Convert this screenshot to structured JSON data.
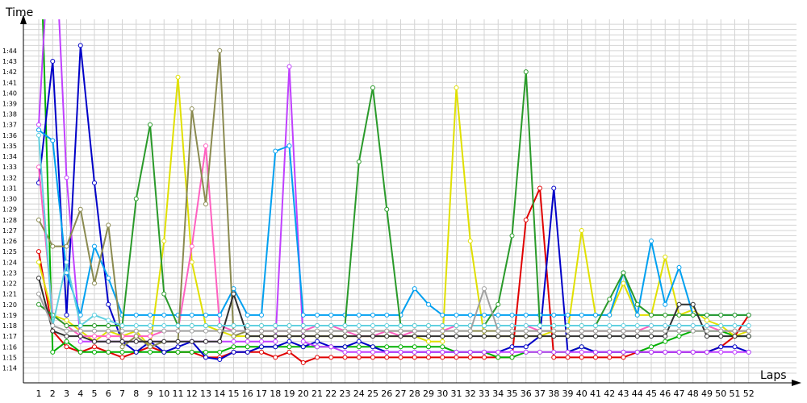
{
  "chart_data": {
    "type": "line",
    "xlabel": "Laps",
    "ylabel": "Time",
    "x": [
      1,
      2,
      3,
      4,
      5,
      6,
      7,
      8,
      9,
      10,
      11,
      12,
      13,
      14,
      15,
      16,
      17,
      18,
      19,
      20,
      21,
      22,
      23,
      24,
      25,
      26,
      27,
      28,
      29,
      30,
      31,
      32,
      33,
      34,
      35,
      36,
      37,
      38,
      39,
      40,
      41,
      42,
      43,
      44,
      45,
      46,
      47,
      48,
      49,
      50,
      51,
      52
    ],
    "x_tick_labels": [
      "1",
      "2",
      "3",
      "4",
      "5",
      "6",
      "7",
      "8",
      "9",
      "10",
      "11",
      "12",
      "13",
      "14",
      "15",
      "16",
      "17",
      "18",
      "19",
      "20",
      "21",
      "22",
      "23",
      "24",
      "25",
      "26",
      "27",
      "28",
      "29",
      "30",
      "31",
      "32",
      "33",
      "34",
      "35",
      "36",
      "37",
      "38",
      "39",
      "40",
      "41",
      "42",
      "43",
      "44",
      "45",
      "46",
      "47",
      "48",
      "49",
      "50",
      "51",
      "52"
    ],
    "y_tick_labels": [
      "1:14",
      "1:15",
      "1:16",
      "1:17",
      "1:18",
      "1:19",
      "1:20",
      "1:21",
      "1:22",
      "1:23",
      "1:24",
      "1:25",
      "1:26",
      "1:27",
      "1:28",
      "1:29",
      "1:30",
      "1:31",
      "1:32",
      "1:33",
      "1:34",
      "1:35",
      "1:36",
      "1:37",
      "1:38",
      "1:39",
      "1:40",
      "1:41",
      "1:42",
      "1:43",
      "1:44"
    ],
    "ylim_seconds": [
      73.2,
      106.5
    ],
    "grid": true,
    "legend": "none",
    "series": [
      {
        "color": "#e00000",
        "values": [
          85.0,
          77.5,
          76.0,
          75.5,
          76.0,
          75.5,
          75.0,
          75.5,
          76.0,
          75.5,
          75.5,
          75.5,
          75.0,
          75.0,
          75.5,
          75.5,
          75.5,
          75.0,
          75.5,
          74.5,
          75.0,
          75.0,
          75.0,
          75.0,
          75.0,
          75.0,
          75.0,
          75.0,
          75.0,
          75.0,
          75.0,
          75.0,
          75.0,
          75.0,
          75.0,
          88.0,
          91.0,
          75.0,
          75.0,
          75.0,
          75.0,
          75.0,
          75.0,
          75.5,
          75.5,
          75.5,
          75.5,
          75.5,
          75.5,
          76.0,
          77.0,
          79.0
        ]
      },
      {
        "color": "#00b000",
        "values": [
          120.0,
          75.5,
          76.5,
          75.5,
          75.5,
          75.5,
          75.5,
          75.5,
          75.5,
          75.5,
          75.5,
          75.5,
          75.5,
          75.5,
          76.0,
          76.0,
          76.0,
          76.0,
          76.0,
          76.0,
          76.0,
          76.0,
          76.0,
          76.0,
          76.0,
          76.0,
          76.0,
          76.0,
          76.0,
          76.0,
          75.5,
          75.5,
          75.5,
          75.0,
          75.0,
          75.5,
          75.5,
          75.5,
          75.5,
          76.0,
          75.5,
          75.5,
          75.5,
          75.5,
          76.0,
          76.5,
          77.0,
          77.5,
          77.5,
          77.5,
          77.0,
          77.0
        ]
      },
      {
        "color": "#0000c8",
        "values": [
          91.5,
          103.0,
          79.0,
          104.5,
          91.5,
          80.0,
          76.5,
          75.5,
          76.5,
          75.5,
          76.0,
          76.5,
          75.0,
          74.8,
          75.5,
          75.5,
          76.0,
          76.0,
          76.5,
          76.0,
          76.5,
          76.0,
          76.0,
          76.5,
          76.0,
          75.5,
          75.5,
          75.5,
          75.5,
          75.5,
          75.5,
          75.5,
          75.5,
          75.5,
          76.0,
          76.0,
          77.0,
          91.0,
          75.5,
          76.0,
          75.5,
          75.5,
          75.5,
          75.5,
          75.5,
          75.5,
          75.5,
          75.5,
          75.5,
          76.0,
          76.0,
          75.5
        ]
      },
      {
        "color": "#e0e000",
        "values": [
          84.0,
          79.0,
          78.5,
          77.5,
          76.5,
          77.5,
          77.0,
          77.5,
          76.0,
          86.0,
          101.5,
          84.0,
          78.0,
          77.5,
          77.0,
          77.0,
          77.0,
          77.0,
          77.0,
          77.0,
          77.0,
          77.0,
          77.0,
          77.0,
          77.0,
          77.0,
          77.0,
          77.0,
          76.5,
          76.5,
          100.5,
          86.0,
          77.0,
          77.0,
          77.0,
          77.0,
          77.0,
          77.5,
          77.5,
          87.0,
          79.0,
          79.0,
          82.0,
          79.0,
          79.0,
          84.5,
          79.0,
          79.5,
          78.5,
          78.0,
          77.0,
          77.5
        ]
      },
      {
        "color": "#ff60c0",
        "values": [
          93.0,
          79.0,
          78.0,
          77.0,
          77.0,
          77.0,
          77.0,
          77.0,
          77.0,
          77.5,
          77.5,
          85.5,
          95.0,
          78.0,
          77.5,
          77.5,
          77.5,
          77.5,
          77.5,
          77.5,
          78.0,
          78.0,
          77.5,
          77.0,
          77.0,
          77.5,
          77.0,
          77.5,
          77.5,
          77.5,
          78.0,
          78.0,
          78.0,
          78.0,
          78.0,
          78.0,
          77.5,
          77.5,
          77.5,
          77.5,
          77.5,
          77.5,
          77.5,
          77.5,
          78.0,
          78.0,
          78.0,
          78.0,
          78.0,
          77.5,
          77.5,
          77.5
        ]
      },
      {
        "color": "#c040ff",
        "values": [
          97.0,
          120.0,
          92.0,
          76.5,
          76.5,
          76.5,
          76.5,
          76.5,
          76.5,
          76.5,
          76.5,
          76.5,
          76.5,
          76.5,
          76.5,
          76.5,
          76.5,
          76.5,
          102.5,
          76.5,
          76.0,
          76.0,
          75.5,
          75.5,
          75.5,
          75.5,
          75.5,
          75.5,
          75.5,
          75.5,
          75.5,
          75.5,
          75.5,
          75.5,
          75.5,
          75.5,
          75.5,
          75.5,
          75.5,
          75.5,
          75.5,
          75.5,
          75.5,
          75.5,
          75.5,
          75.5,
          75.5,
          75.5,
          75.5,
          75.5,
          75.5,
          75.5
        ]
      },
      {
        "color": "#00a0f0",
        "values": [
          96.5,
          95.5,
          83.0,
          79.0,
          85.5,
          82.5,
          79.0,
          79.0,
          79.0,
          79.0,
          79.0,
          79.0,
          79.0,
          79.0,
          81.5,
          79.0,
          79.0,
          94.5,
          95.0,
          79.0,
          79.0,
          79.0,
          79.0,
          79.0,
          79.0,
          79.0,
          79.0,
          81.5,
          80.0,
          79.0,
          79.0,
          79.0,
          79.0,
          79.0,
          79.0,
          79.0,
          79.0,
          79.0,
          79.0,
          79.0,
          79.0,
          79.0,
          83.0,
          79.0,
          86.0,
          80.0,
          83.5,
          79.0,
          79.0,
          79.0,
          79.0,
          79.0
        ]
      },
      {
        "color": "#2a9a2a",
        "values": [
          80.0,
          79.0,
          78.0,
          78.0,
          78.0,
          78.0,
          78.0,
          90.0,
          97.0,
          81.0,
          78.0,
          78.0,
          78.0,
          78.0,
          78.0,
          78.0,
          78.0,
          78.0,
          78.0,
          78.0,
          78.0,
          78.0,
          78.0,
          93.5,
          100.5,
          89.0,
          78.0,
          78.0,
          78.0,
          78.0,
          78.0,
          78.0,
          78.0,
          80.0,
          86.5,
          102.0,
          78.0,
          78.0,
          78.0,
          78.0,
          78.0,
          80.5,
          83.0,
          80.0,
          79.0,
          79.0,
          79.0,
          79.0,
          79.0,
          79.0,
          79.0,
          79.0
        ]
      },
      {
        "color": "#8a8a50",
        "values": [
          88.0,
          85.5,
          85.5,
          89.0,
          82.0,
          87.5,
          76.0,
          77.0,
          76.0,
          76.5,
          76.5,
          98.5,
          89.5,
          104.0,
          77.0,
          77.5,
          77.5,
          77.5,
          77.5,
          77.5,
          77.5,
          77.5,
          77.5,
          77.5,
          77.5,
          77.5,
          77.5,
          77.5,
          77.5,
          77.5,
          77.5,
          77.5,
          77.5,
          77.5,
          77.5,
          77.5,
          77.5,
          77.5,
          77.5,
          77.5,
          77.5,
          77.5,
          77.5,
          77.5,
          77.5,
          77.5,
          77.5,
          77.5,
          77.5,
          77.5,
          77.5,
          77.5
        ]
      },
      {
        "color": "#303030",
        "values": [
          82.5,
          77.5,
          77.0,
          77.0,
          76.5,
          76.5,
          76.5,
          76.5,
          76.5,
          76.5,
          76.5,
          76.5,
          76.5,
          76.5,
          81.0,
          77.0,
          77.0,
          77.0,
          77.0,
          77.0,
          77.0,
          77.0,
          77.0,
          77.0,
          77.0,
          77.0,
          77.0,
          77.0,
          77.0,
          77.0,
          77.0,
          77.0,
          77.0,
          77.0,
          77.0,
          77.0,
          77.0,
          77.0,
          77.0,
          77.0,
          77.0,
          77.0,
          77.0,
          77.0,
          77.0,
          77.0,
          80.0,
          80.0,
          77.0,
          77.0,
          77.0,
          77.0
        ]
      },
      {
        "color": "#60d0e0",
        "values": [
          96.0,
          78.0,
          84.0,
          78.0,
          79.0,
          78.5,
          78.0,
          78.0,
          78.0,
          78.0,
          78.0,
          78.0,
          78.0,
          78.0,
          78.0,
          78.0,
          78.0,
          78.0,
          78.0,
          78.0,
          78.0,
          78.0,
          78.0,
          78.0,
          78.0,
          78.0,
          78.0,
          78.0,
          78.0,
          78.0,
          78.0,
          78.0,
          78.0,
          78.0,
          78.0,
          78.0,
          78.0,
          78.0,
          78.0,
          78.0,
          78.0,
          78.0,
          78.0,
          78.0,
          78.0,
          78.0,
          78.0,
          78.0,
          78.0,
          78.0,
          78.0,
          78.0
        ]
      },
      {
        "color": "#a0a0a0",
        "values": [
          81.0,
          78.0,
          77.5,
          77.5,
          77.5,
          77.5,
          77.5,
          77.5,
          77.5,
          77.5,
          77.5,
          77.5,
          77.5,
          77.5,
          77.5,
          77.5,
          77.5,
          77.5,
          77.5,
          77.5,
          77.5,
          77.5,
          77.5,
          77.5,
          77.5,
          77.5,
          77.5,
          77.5,
          77.5,
          77.5,
          77.5,
          77.5,
          81.5,
          77.5,
          77.5,
          77.5,
          77.5,
          77.5,
          77.5,
          77.5,
          77.5,
          77.5,
          77.5,
          77.5,
          77.5,
          77.5,
          77.5,
          77.5,
          77.5,
          77.5,
          77.5,
          77.5
        ]
      }
    ]
  }
}
